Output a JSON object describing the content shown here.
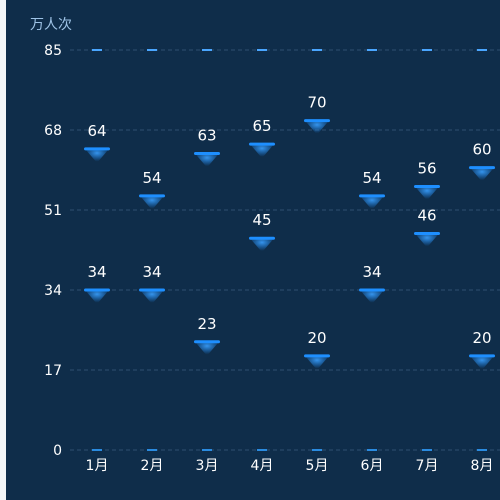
{
  "chart_data": {
    "type": "scatter",
    "ylabel": "万人次",
    "categories": [
      "1月",
      "2月",
      "3月",
      "4月",
      "5月",
      "6月",
      "7月",
      "8月"
    ],
    "yticks": [
      0,
      17,
      34,
      51,
      68,
      85
    ],
    "ylim": [
      0,
      85
    ],
    "grid": true,
    "series": [
      {
        "values": [
          64,
          54,
          63,
          65,
          70,
          54,
          56,
          60
        ]
      },
      {
        "values": [
          34,
          34,
          23,
          45,
          20,
          34,
          46,
          20
        ]
      }
    ],
    "colors": {
      "background": "#0f2d4a",
      "grid": "#2f5070",
      "axis_text": "#ffffff",
      "stem": "#3a8fd8",
      "marker": "#1e8fff",
      "label": "#ffffff"
    }
  }
}
